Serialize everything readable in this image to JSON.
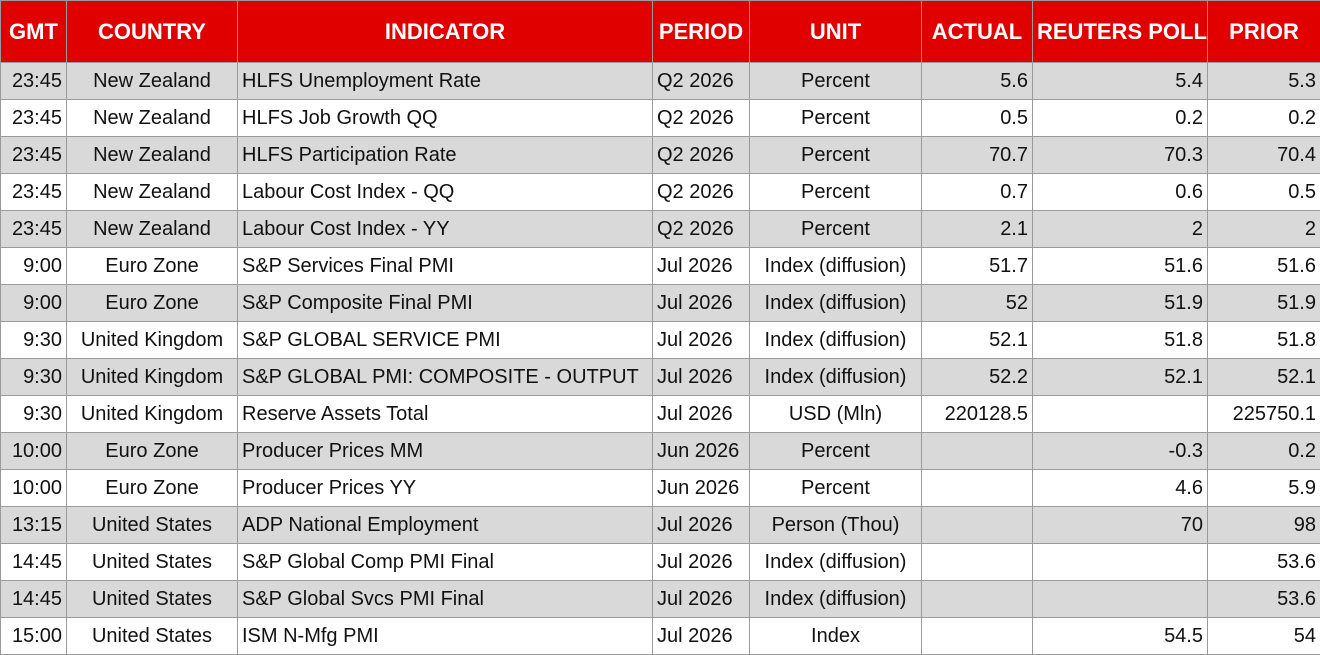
{
  "headers": [
    "GMT",
    "COUNTRY",
    "INDICATOR",
    "PERIOD",
    "UNIT",
    "ACTUAL",
    "REUTERS POLL",
    "PRIOR"
  ],
  "rows": [
    {
      "gmt": "23:45",
      "country": "New Zealand",
      "indicator": "HLFS Unemployment Rate",
      "period": "Q2 2026",
      "unit": "Percent",
      "actual": "5.6",
      "poll": "5.4",
      "prior": "5.3"
    },
    {
      "gmt": "23:45",
      "country": "New Zealand",
      "indicator": "HLFS Job Growth QQ",
      "period": "Q2 2026",
      "unit": "Percent",
      "actual": "0.5",
      "poll": "0.2",
      "prior": "0.2"
    },
    {
      "gmt": "23:45",
      "country": "New Zealand",
      "indicator": "HLFS Participation Rate",
      "period": "Q2 2026",
      "unit": "Percent",
      "actual": "70.7",
      "poll": "70.3",
      "prior": "70.4"
    },
    {
      "gmt": "23:45",
      "country": "New Zealand",
      "indicator": "Labour Cost Index - QQ",
      "period": "Q2 2026",
      "unit": "Percent",
      "actual": "0.7",
      "poll": "0.6",
      "prior": "0.5"
    },
    {
      "gmt": "23:45",
      "country": "New Zealand",
      "indicator": "Labour Cost Index - YY",
      "period": "Q2 2026",
      "unit": "Percent",
      "actual": "2.1",
      "poll": "2",
      "prior": "2"
    },
    {
      "gmt": "9:00",
      "country": "Euro Zone",
      "indicator": "S&P Services Final PMI",
      "period": "Jul 2026",
      "unit": "Index (diffusion)",
      "actual": "51.7",
      "poll": "51.6",
      "prior": "51.6"
    },
    {
      "gmt": "9:00",
      "country": "Euro Zone",
      "indicator": "S&P Composite Final PMI",
      "period": "Jul 2026",
      "unit": "Index (diffusion)",
      "actual": "52",
      "poll": "51.9",
      "prior": "51.9"
    },
    {
      "gmt": "9:30",
      "country": "United Kingdom",
      "indicator": "S&P GLOBAL SERVICE PMI",
      "period": "Jul 2026",
      "unit": "Index (diffusion)",
      "actual": "52.1",
      "poll": "51.8",
      "prior": "51.8"
    },
    {
      "gmt": "9:30",
      "country": "United Kingdom",
      "indicator": "S&P GLOBAL PMI: COMPOSITE - OUTPUT",
      "period": "Jul 2026",
      "unit": "Index (diffusion)",
      "actual": "52.2",
      "poll": "52.1",
      "prior": "52.1"
    },
    {
      "gmt": "9:30",
      "country": "United Kingdom",
      "indicator": "Reserve Assets Total",
      "period": "Jul 2026",
      "unit": "USD (Mln)",
      "actual": "220128.5",
      "poll": "",
      "prior": "225750.1"
    },
    {
      "gmt": "10:00",
      "country": "Euro Zone",
      "indicator": "Producer Prices MM",
      "period": "Jun 2026",
      "unit": "Percent",
      "actual": "",
      "poll": "-0.3",
      "prior": "0.2"
    },
    {
      "gmt": "10:00",
      "country": "Euro Zone",
      "indicator": "Producer Prices YY",
      "period": "Jun 2026",
      "unit": "Percent",
      "actual": "",
      "poll": "4.6",
      "prior": "5.9"
    },
    {
      "gmt": "13:15",
      "country": "United States",
      "indicator": "ADP National Employment",
      "period": "Jul 2026",
      "unit": "Person (Thou)",
      "actual": "",
      "poll": "70",
      "prior": "98"
    },
    {
      "gmt": "14:45",
      "country": "United States",
      "indicator": "S&P Global Comp PMI Final",
      "period": "Jul 2026",
      "unit": "Index (diffusion)",
      "actual": "",
      "poll": "",
      "prior": "53.6"
    },
    {
      "gmt": "14:45",
      "country": "United States",
      "indicator": "S&P Global Svcs PMI Final",
      "period": "Jul 2026",
      "unit": "Index (diffusion)",
      "actual": "",
      "poll": "",
      "prior": "53.6"
    },
    {
      "gmt": "15:00",
      "country": "United States",
      "indicator": "ISM N-Mfg PMI",
      "period": "Jul 2026",
      "unit": "Index",
      "actual": "",
      "poll": "54.5",
      "prior": "54"
    }
  ],
  "colors": {
    "header_bg": "#e00000",
    "header_text": "#ffffff",
    "row_alt": "#d9d9d9",
    "row_plain": "#ffffff"
  }
}
